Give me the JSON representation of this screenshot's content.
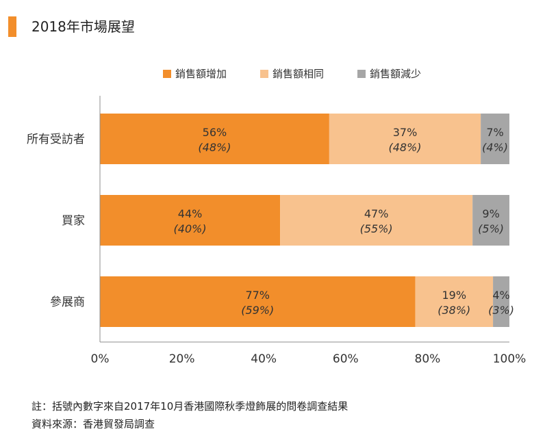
{
  "title": "2018年市場展望",
  "chart_data": {
    "type": "bar",
    "orientation": "horizontal",
    "stacked": true,
    "categories": [
      "所有受訪者",
      "買家",
      "參展商"
    ],
    "series": [
      {
        "name": "銷售額增加",
        "color": "#f28e2b",
        "values": [
          56,
          44,
          77
        ],
        "labels": [
          "56%",
          "44%",
          "77%"
        ],
        "previous": [
          "(48%)",
          "(40%)",
          "(59%)"
        ]
      },
      {
        "name": "銷售額相同",
        "color": "#f8c28e",
        "values": [
          37,
          47,
          19
        ],
        "labels": [
          "37%",
          "47%",
          "19%"
        ],
        "previous": [
          "(48%)",
          "(55%)",
          "(38%)"
        ]
      },
      {
        "name": "銷售額減少",
        "color": "#a6a6a6",
        "values": [
          7,
          9,
          4
        ],
        "labels": [
          "7%",
          "9%",
          "4%"
        ],
        "previous": [
          "(4%)",
          "(5%)",
          "(3%)"
        ]
      }
    ],
    "x_ticks": [
      "0%",
      "20%",
      "40%",
      "60%",
      "80%",
      "100%"
    ],
    "xlim": [
      0,
      100
    ],
    "legend_position": "top",
    "grid": false
  },
  "notes": {
    "note": "註：括號內數字來自2017年10月香港國際秋季燈飾展的問卷調查結果",
    "source": "資料來源：香港貿發局調查"
  }
}
